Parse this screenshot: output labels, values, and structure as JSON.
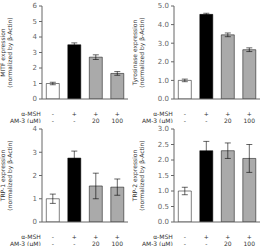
{
  "chart_data": [
    {
      "type": "bar",
      "ylabel": "MITF expression\n(normalized by β-Actin)",
      "xlabel": "α-MSH\nAM-3 (μM)",
      "categories": [
        "-\n-",
        "+\n-",
        "+\n20",
        "+\n100"
      ],
      "values": [
        1.0,
        3.5,
        2.7,
        1.65
      ],
      "errors": [
        0.08,
        0.12,
        0.15,
        0.12
      ],
      "colors": [
        "white",
        "black",
        "#aaaaaa",
        "#aaaaaa"
      ],
      "ylim": [
        0,
        6
      ],
      "yticks": [
        0,
        1,
        2,
        3,
        4,
        5,
        6
      ]
    },
    {
      "type": "bar",
      "ylabel": "Tyrosinase expression\n(normalized by β-Actin)",
      "xlabel": "α-MSH\nAM-3 (μM)",
      "categories": [
        "-\n-",
        "+\n-",
        "+\n20",
        "+\n100"
      ],
      "values": [
        1.0,
        4.55,
        3.45,
        2.65
      ],
      "errors": [
        0.07,
        0.06,
        0.1,
        0.1
      ],
      "colors": [
        "white",
        "black",
        "#aaaaaa",
        "#aaaaaa"
      ],
      "ylim": [
        0,
        5.0
      ],
      "yticks": [
        {
          "value": 0,
          "label": "0.0"
        },
        {
          "value": 1,
          "label": "1.0"
        },
        {
          "value": 2,
          "label": "2.0"
        },
        {
          "value": 3,
          "label": "3.0"
        },
        {
          "value": 4,
          "label": "4.0"
        },
        {
          "value": 5,
          "label": "5.0"
        }
      ]
    },
    {
      "type": "bar",
      "ylabel": "TRP-1 expression\n(normalized by β-Actin)",
      "xlabel": "α-MSH\nAM-3 (μM)",
      "categories": [
        "-\n-",
        "+\n-",
        "+\n20",
        "+\n100"
      ],
      "values": [
        1.0,
        2.75,
        1.55,
        1.5
      ],
      "errors": [
        0.2,
        0.3,
        0.55,
        0.35
      ],
      "colors": [
        "white",
        "black",
        "#aaaaaa",
        "#aaaaaa"
      ],
      "ylim": [
        0,
        4
      ],
      "yticks": [
        0,
        1,
        2,
        3,
        4
      ]
    },
    {
      "type": "bar",
      "ylabel": "TRP-2 expression\n(normalized by β-Actin)",
      "xlabel": "α-MSH\nAM-3 (μM)",
      "categories": [
        "-\n-",
        "+\n-",
        "+\n20",
        "+\n100"
      ],
      "values": [
        1.0,
        2.3,
        2.3,
        2.05
      ],
      "errors": [
        0.12,
        0.3,
        0.25,
        0.45
      ],
      "colors": [
        "white",
        "black",
        "#aaaaaa",
        "#aaaaaa"
      ],
      "ylim": [
        0,
        3.0
      ],
      "yticks": [
        {
          "value": 0,
          "label": "0.0"
        },
        {
          "value": 0.5,
          "label": "0.5"
        },
        {
          "value": 1,
          "label": "1.0"
        },
        {
          "value": 1.5,
          "label": "1.5"
        },
        {
          "value": 2,
          "label": "2.0"
        },
        {
          "value": 2.5,
          "label": "2.5"
        },
        {
          "value": 3,
          "label": "3.0"
        }
      ]
    }
  ]
}
